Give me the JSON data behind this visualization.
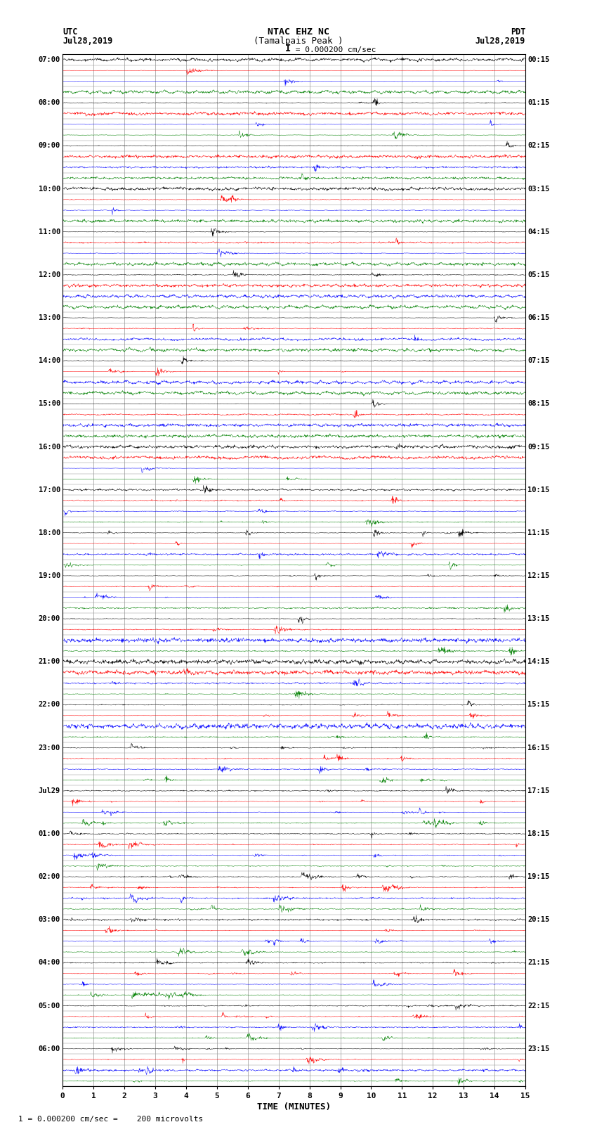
{
  "title_line1": "NTAC EHZ NC",
  "title_line2": "(Tamalpais Peak )",
  "scale_text": "= 0.000200 cm/sec",
  "left_label": "UTC",
  "left_date": "Jul28,2019",
  "right_label": "PDT",
  "right_date": "Jul28,2019",
  "xlabel": "TIME (MINUTES)",
  "footnote": "1 = 0.000200 cm/sec =    200 microvolts",
  "utc_times": [
    "07:00",
    "",
    "",
    "",
    "08:00",
    "",
    "",
    "",
    "09:00",
    "",
    "",
    "",
    "10:00",
    "",
    "",
    "",
    "11:00",
    "",
    "",
    "",
    "12:00",
    "",
    "",
    "",
    "13:00",
    "",
    "",
    "",
    "14:00",
    "",
    "",
    "",
    "15:00",
    "",
    "",
    "",
    "16:00",
    "",
    "",
    "",
    "17:00",
    "",
    "",
    "",
    "18:00",
    "",
    "",
    "",
    "19:00",
    "",
    "",
    "",
    "20:00",
    "",
    "",
    "",
    "21:00",
    "",
    "",
    "",
    "22:00",
    "",
    "",
    "",
    "23:00",
    "",
    "",
    "",
    "Jul29",
    "",
    "",
    "",
    "01:00",
    "",
    "",
    "",
    "02:00",
    "",
    "",
    "",
    "03:00",
    "",
    "",
    "",
    "04:00",
    "",
    "",
    "",
    "05:00",
    "",
    "",
    "",
    "06:00",
    "",
    "",
    ""
  ],
  "pdt_times": [
    "00:15",
    "",
    "",
    "",
    "01:15",
    "",
    "",
    "",
    "02:15",
    "",
    "",
    "",
    "03:15",
    "",
    "",
    "",
    "04:15",
    "",
    "",
    "",
    "05:15",
    "",
    "",
    "",
    "06:15",
    "",
    "",
    "",
    "07:15",
    "",
    "",
    "",
    "08:15",
    "",
    "",
    "",
    "09:15",
    "",
    "",
    "",
    "10:15",
    "",
    "",
    "",
    "11:15",
    "",
    "",
    "",
    "12:15",
    "",
    "",
    "",
    "13:15",
    "",
    "",
    "",
    "14:15",
    "",
    "",
    "",
    "15:15",
    "",
    "",
    "",
    "16:15",
    "",
    "",
    "",
    "17:15",
    "",
    "",
    "",
    "18:15",
    "",
    "",
    "",
    "19:15",
    "",
    "",
    "",
    "20:15",
    "",
    "",
    "",
    "21:15",
    "",
    "",
    "",
    "22:15",
    "",
    "",
    "",
    "23:15",
    "",
    "",
    ""
  ],
  "colors": [
    "black",
    "red",
    "blue",
    "green"
  ],
  "num_rows": 96,
  "xmin": 0,
  "xmax": 15,
  "xticks": [
    0,
    1,
    2,
    3,
    4,
    5,
    6,
    7,
    8,
    9,
    10,
    11,
    12,
    13,
    14,
    15
  ],
  "background_color": "#ffffff",
  "grid_color": "#999999",
  "noise_seed": 42
}
